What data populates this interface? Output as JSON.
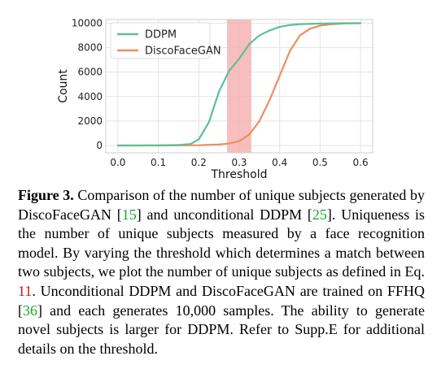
{
  "chart_data": {
    "type": "line",
    "title": "",
    "xlabel": "Threshold",
    "ylabel": "Count",
    "xlim": [
      -0.03,
      0.63
    ],
    "ylim": [
      -600,
      10300
    ],
    "xticks": [
      0.0,
      0.1,
      0.2,
      0.3,
      0.4,
      0.5,
      0.6
    ],
    "xtick_labels": [
      "0.0",
      "0.1",
      "0.2",
      "0.3",
      "0.4",
      "0.5",
      "0.6"
    ],
    "yticks": [
      0,
      2000,
      4000,
      6000,
      8000,
      10000
    ],
    "ytick_labels": [
      "0",
      "2000",
      "4000",
      "6000",
      "8000",
      "10000"
    ],
    "grid": true,
    "legend_position": "top-left",
    "highlight_band": {
      "x_start": 0.27,
      "x_end": 0.33,
      "color": "#f6b3b3"
    },
    "series": [
      {
        "name": "DDPM",
        "color": "#5dbf98",
        "x": [
          0.0,
          0.05,
          0.1,
          0.15,
          0.18,
          0.2,
          0.225,
          0.25,
          0.275,
          0.3,
          0.325,
          0.35,
          0.375,
          0.4,
          0.425,
          0.45,
          0.5,
          0.55,
          0.6
        ],
        "y": [
          0,
          0,
          10,
          40,
          120,
          500,
          1900,
          4400,
          6100,
          7100,
          8300,
          9000,
          9400,
          9700,
          9850,
          9920,
          9970,
          9990,
          10000
        ]
      },
      {
        "name": "DiscoFaceGAN",
        "color": "#ef8d5f",
        "x": [
          0.0,
          0.1,
          0.2,
          0.25,
          0.275,
          0.3,
          0.325,
          0.35,
          0.375,
          0.4,
          0.425,
          0.45,
          0.475,
          0.5,
          0.525,
          0.55,
          0.575,
          0.6
        ],
        "y": [
          0,
          0,
          20,
          80,
          160,
          350,
          900,
          2000,
          3700,
          5700,
          7700,
          9000,
          9550,
          9800,
          9900,
          9960,
          9990,
          10000
        ]
      }
    ]
  },
  "caption": {
    "label": "Figure 3.",
    "t1": " Comparison of the number of unique subjects generated by DiscoFaceGAN [",
    "ref1": "15",
    "t2": "] and unconditional DDPM [",
    "ref2": "25",
    "t3": "]. Uniqueness is the number of unique subjects measured by a face recognition model. By varying the threshold which determines a match between two subjects, we plot the number of unique subjects as defined in Eq. ",
    "ref3": "11",
    "t4": ". Unconditional DDPM and DiscoFaceGAN are trained on FFHQ [",
    "ref4": "36",
    "t5": "] and each generates 10,000 samples. The ability to generate novel subjects is larger for DDPM. Refer to Supp.E for additional details on the threshold."
  }
}
